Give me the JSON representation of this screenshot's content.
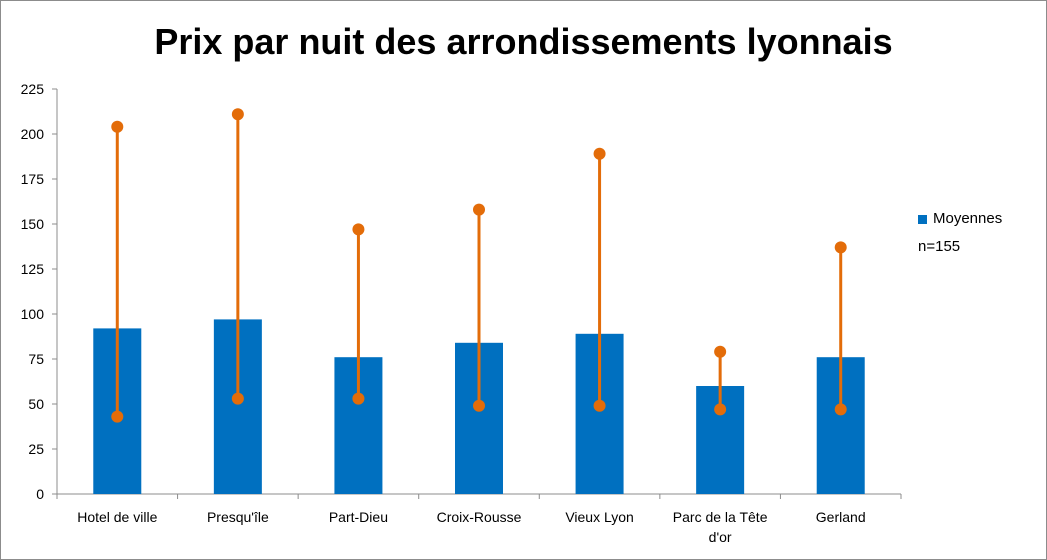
{
  "chart_data": {
    "type": "bar",
    "title": "Prix par nuit des arrondissements lyonnais",
    "categories": [
      "Hotel de ville",
      "Presqu'île",
      "Part-Dieu",
      "Croix-Rousse",
      "Vieux Lyon",
      "Parc de la Tête d'or",
      "Gerland"
    ],
    "series": [
      {
        "name": "Moyennes",
        "values": [
          92,
          97,
          76,
          84,
          89,
          60,
          76
        ],
        "color": "#0070c0"
      }
    ],
    "range": {
      "low": [
        43,
        53,
        53,
        49,
        49,
        47,
        47
      ],
      "high": [
        204,
        211,
        147,
        158,
        189,
        79,
        137
      ],
      "color": "#e36c09"
    },
    "ylim": [
      0,
      225
    ],
    "yticks": [
      0,
      25,
      50,
      75,
      100,
      125,
      150,
      175,
      200,
      225
    ],
    "grid": false,
    "legend_position": "right",
    "legend_note": "n=155"
  }
}
